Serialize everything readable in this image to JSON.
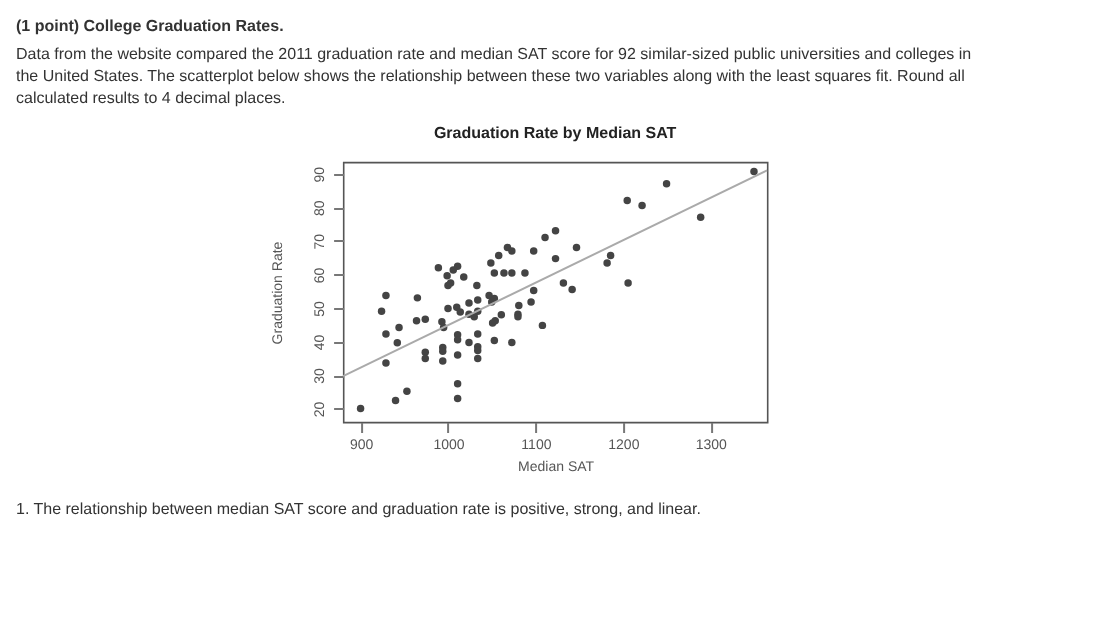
{
  "chart_data": {
    "type": "scatter",
    "title": "Graduation Rate by Median SAT",
    "xlabel": "Median SAT",
    "ylabel": "Graduation Rate",
    "annotations": [
      "(1 point) College Graduation Rates.",
      "Data from the website compared the 2011 graduation rate and median SAT score for 92 similar-sized public universities and colleges in the United States. The scatterplot below shows the relationship between these two variables along with the least squares fit. Round all calculated results to 4 decimal places.",
      "1. The relationship between median SAT score and graduation rate is positive, strong, and linear."
    ],
    "xlim": [
      880,
      1365
    ],
    "ylim": [
      16,
      93.5
    ],
    "xticks": [
      900,
      1000,
      1100,
      1200,
      1300
    ],
    "yticks": [
      20,
      30,
      40,
      50,
      60,
      70,
      80,
      90
    ],
    "grid": false,
    "series": [
      {
        "type": "scatter",
        "color": "#444444",
        "marker": "circle",
        "x": [
          1350,
          1250,
          1205,
          1222,
          1289,
          1123,
          1111,
          1147,
          1098,
          1068,
          1073,
          1186,
          1182,
          1058,
          1049,
          1123,
          1011,
          1006,
          999,
          989,
          1053,
          1064,
          1073,
          1088,
          1018,
          1000,
          1003,
          1033,
          1206,
          1132,
          1142,
          1098,
          929,
          965,
          1047,
          1053,
          1050,
          1034,
          1024,
          1095,
          1081,
          964,
          974,
          924,
          993,
          1000,
          1010,
          1014,
          1024,
          1030,
          1034,
          1054,
          1051,
          1080,
          1080,
          1061,
          929,
          944,
          995,
          942,
          1011,
          1011,
          1024,
          1034,
          1034,
          1034,
          1053,
          1073,
          1108,
          974,
          974,
          994,
          994,
          994,
          1011,
          1034,
          929,
          1011,
          1011,
          953,
          940,
          900
        ],
        "values": [
          90.7,
          87,
          82,
          80.5,
          77,
          73,
          71,
          68,
          67,
          68,
          67,
          65.6,
          63.4,
          65.6,
          63.4,
          64.7,
          62.4,
          61.3,
          59.6,
          62,
          60.4,
          60.4,
          60.4,
          60.4,
          59.2,
          56.7,
          57.4,
          56.7,
          57.4,
          57.4,
          55.5,
          55.2,
          53.7,
          53,
          53.7,
          52.8,
          51.8,
          52.4,
          51.5,
          51.8,
          50.7,
          46.2,
          46.6,
          49,
          45.9,
          49.8,
          50.2,
          48.8,
          48.1,
          47.4,
          49,
          46.2,
          45.5,
          48.1,
          47.4,
          48,
          42.2,
          44.2,
          44.2,
          39.6,
          42,
          40.5,
          39.7,
          42.2,
          38.4,
          37.3,
          40.3,
          39.7,
          44.8,
          36.8,
          34.9,
          38.2,
          37.1,
          34.2,
          36,
          34.9,
          33.6,
          27.4,
          23,
          25.2,
          22.4,
          20
        ]
      },
      {
        "type": "line",
        "color": "#aaaaaa",
        "x": [
          880,
          1365
        ],
        "values": [
          29.7,
          91
        ]
      }
    ]
  }
}
